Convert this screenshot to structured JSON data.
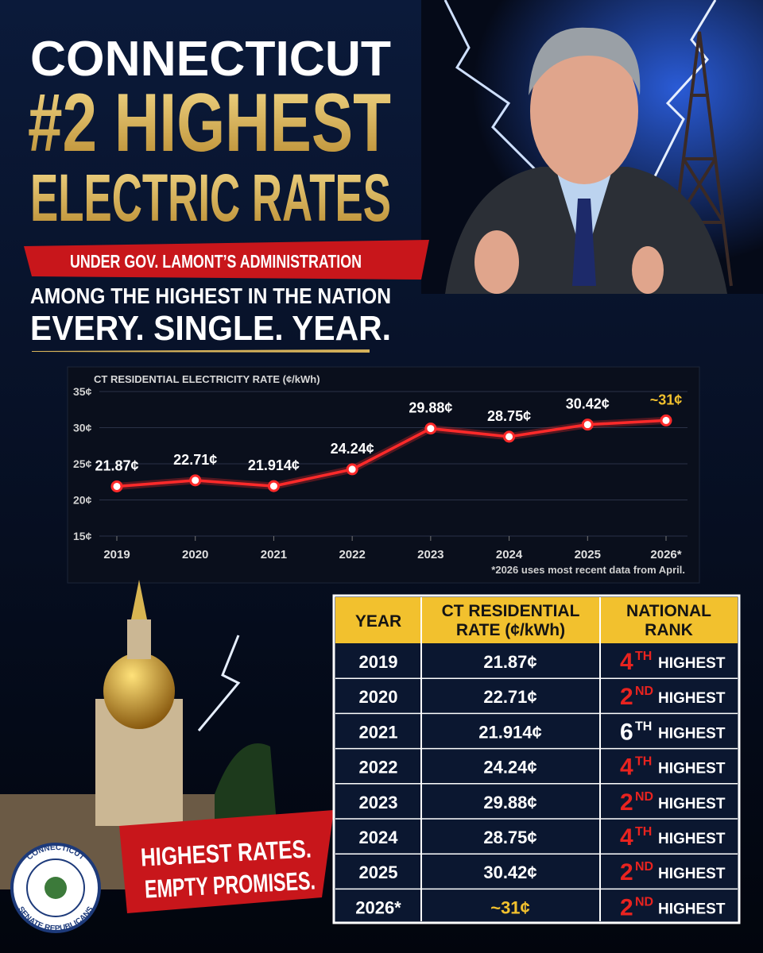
{
  "header": {
    "line1": "CONNECTICUT",
    "line2": "#2 HIGHEST",
    "line3": "ELECTRIC RATES",
    "banner": "UNDER GOV. LAMONT’S ADMINISTRATION",
    "sub1": "AMONG THE HIGHEST IN THE NATION",
    "sub2": "EVERY. SINGLE. YEAR."
  },
  "chart_data": {
    "type": "line",
    "title": "CT RESIDENTIAL ELECTRICITY RATE (¢/kWh)",
    "categories": [
      "2019",
      "2020",
      "2021",
      "2022",
      "2023",
      "2024",
      "2025",
      "2026*"
    ],
    "values": [
      21.87,
      22.71,
      21.914,
      24.24,
      29.88,
      28.75,
      30.42,
      31
    ],
    "value_labels": [
      "21.87¢",
      "22.71¢",
      "21.914¢",
      "24.24¢",
      "29.88¢",
      "28.75¢",
      "30.42¢",
      "~31¢"
    ],
    "value_label_colors": [
      "#ffffff",
      "#ffffff",
      "#ffffff",
      "#ffffff",
      "#ffffff",
      "#ffffff",
      "#ffffff",
      "#f2c12e"
    ],
    "color": "#ff2a2a",
    "ylim": [
      15,
      35
    ],
    "yticks": [
      {
        "value": 15,
        "label": "15¢"
      },
      {
        "value": 20,
        "label": "20¢"
      },
      {
        "value": 25,
        "label": "25¢"
      },
      {
        "value": 30,
        "label": "30¢"
      },
      {
        "value": 35,
        "label": "35¢"
      }
    ],
    "grid": true,
    "footnote": "*2026 uses most recent data from April."
  },
  "table": {
    "header": [
      [
        "YEAR"
      ],
      [
        "CT RESIDENTIAL",
        "RATE (¢/kWh)"
      ],
      [
        "NATIONAL",
        "RANK"
      ]
    ],
    "rows": [
      {
        "year": "2019",
        "rate": "21.87¢",
        "rate_color": "#ffffff",
        "rank": "4",
        "suffix": "TH",
        "word": "HIGHEST",
        "rank_color": "#e8231f"
      },
      {
        "year": "2020",
        "rate": "22.71¢",
        "rate_color": "#ffffff",
        "rank": "2",
        "suffix": "ND",
        "word": "HIGHEST",
        "rank_color": "#e8231f"
      },
      {
        "year": "2021",
        "rate": "21.914¢",
        "rate_color": "#ffffff",
        "rank": "6",
        "suffix": "TH",
        "word": "HIGHEST",
        "rank_color": "#ffffff"
      },
      {
        "year": "2022",
        "rate": "24.24¢",
        "rate_color": "#ffffff",
        "rank": "4",
        "suffix": "TH",
        "word": "HIGHEST",
        "rank_color": "#e8231f"
      },
      {
        "year": "2023",
        "rate": "29.88¢",
        "rate_color": "#ffffff",
        "rank": "2",
        "suffix": "ND",
        "word": "HIGHEST",
        "rank_color": "#e8231f"
      },
      {
        "year": "2024",
        "rate": "28.75¢",
        "rate_color": "#ffffff",
        "rank": "4",
        "suffix": "TH",
        "word": "HIGHEST",
        "rank_color": "#e8231f"
      },
      {
        "year": "2025",
        "rate": "30.42¢",
        "rate_color": "#ffffff",
        "rank": "2",
        "suffix": "ND",
        "word": "HIGHEST",
        "rank_color": "#e8231f"
      },
      {
        "year": "2026*",
        "rate": "~31¢",
        "rate_color": "#f2c12e",
        "rank": "2",
        "suffix": "ND",
        "word": "HIGHEST",
        "rank_color": "#e8231f"
      }
    ]
  },
  "footer": {
    "line1": "HIGHEST RATES.",
    "line2": "EMPTY PROMISES."
  },
  "seal": {
    "top": "CONNECTICUT",
    "bottom": "SENATE REPUBLICANS"
  }
}
